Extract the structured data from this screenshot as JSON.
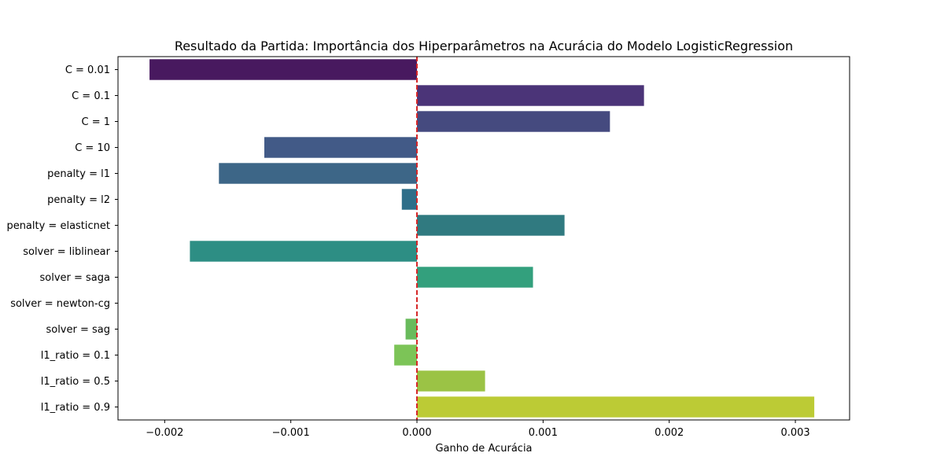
{
  "chart_data": {
    "type": "bar",
    "orientation": "horizontal",
    "title": "Resultado da Partida: Importância dos Hiperparâmetros na Acurácia do Modelo LogisticRegression",
    "xlabel": "Ganho de Acurácia",
    "ylabel": "",
    "xlim": [
      -0.00237,
      0.00343
    ],
    "xticks": [
      {
        "value": -0.002,
        "label": "−0.002"
      },
      {
        "value": -0.001,
        "label": "−0.001"
      },
      {
        "value": 0.0,
        "label": "0.000"
      },
      {
        "value": 0.001,
        "label": "0.001"
      },
      {
        "value": 0.002,
        "label": "0.002"
      },
      {
        "value": 0.003,
        "label": "0.003"
      }
    ],
    "categories": [
      "C = 0.01",
      "C = 0.1",
      "C = 1",
      "C = 10",
      "penalty = l1",
      "penalty = l2",
      "penalty = elasticnet",
      "solver = liblinear",
      "solver = saga",
      "solver = newton-cg",
      "solver = sag",
      "l1_ratio = 0.1",
      "l1_ratio = 0.5",
      "l1_ratio = 0.9"
    ],
    "values": [
      -0.00212,
      0.0018,
      0.00153,
      -0.00121,
      -0.00157,
      -0.00012,
      0.00117,
      -0.0018,
      0.00092,
      0.0,
      -9e-05,
      -0.00018,
      0.00054,
      0.00315
    ],
    "colors": [
      "#48195f",
      "#4b3478",
      "#454a7f",
      "#425a87",
      "#3d6687",
      "#2e6e89",
      "#307a80",
      "#2d8e84",
      "#33a07d",
      "#4ab46b",
      "#69bb5c",
      "#7cc457",
      "#9bc345",
      "#bccb35"
    ],
    "reference_line": {
      "value": 0.0,
      "color": "#d62728",
      "style": "dashed"
    },
    "grid": false,
    "legend": "none"
  }
}
